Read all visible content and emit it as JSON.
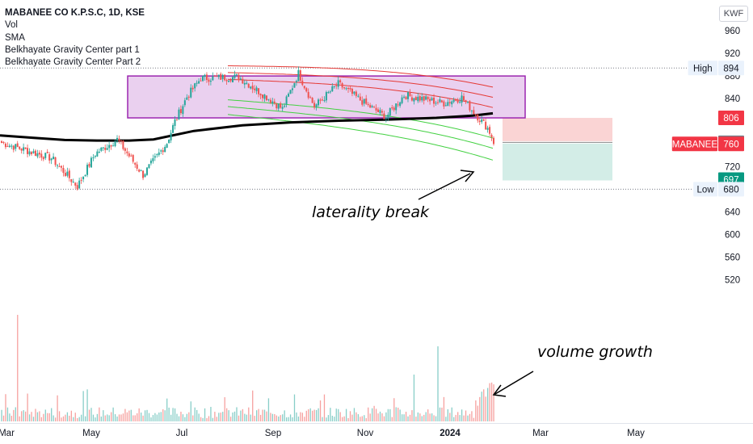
{
  "legend": {
    "title": "MABANEE CO K.P.S.C, 1D, KSE",
    "indicators": [
      "Vol",
      "SMA",
      "Belkhayate Gravity Center part 1",
      "Belkhayate Gravity Center Part 2"
    ]
  },
  "currency": "KWF",
  "annotations": {
    "laterality": "laterality break",
    "volume": "volume growth"
  },
  "colors": {
    "up": "#26a69a",
    "down": "#ef5350",
    "box_fill": "#e6c8ec",
    "box_stroke": "#9c27b0",
    "sma": "#000000",
    "upper_band": "#e53935",
    "lower_band": "#43d142",
    "stop_zone": "#fad4d4",
    "target_zone": "#d3ede7"
  },
  "chart_data": {
    "type": "candlestick",
    "symbol": "MABANEE",
    "y_axis": {
      "ticks": [
        960,
        920,
        880,
        840,
        800,
        760,
        720,
        680,
        640,
        600,
        560,
        520
      ],
      "range": [
        518,
        974
      ]
    },
    "x_axis": {
      "labels": [
        "Mar",
        "May",
        "Jul",
        "Sep",
        "Nov",
        "2024",
        "Mar",
        "May"
      ],
      "label_x": [
        8,
        113,
        225,
        338,
        452,
        557,
        669,
        787
      ]
    },
    "price_levels": {
      "high": {
        "label": "High",
        "value": 894
      },
      "low": {
        "label": "Low",
        "value": 680
      },
      "current": {
        "label": "MABANEE",
        "value": 760
      },
      "stop": {
        "value": 806
      },
      "entry": {
        "value": 762
      },
      "target": {
        "value": 697
      }
    },
    "consolidation_box": {
      "price_top": 880,
      "price_bottom": 806
    },
    "candles_approx": {
      "segments": [
        {
          "n": 25,
          "from": 762,
          "to": 735
        },
        {
          "n": 13,
          "from": 735,
          "to": 685
        },
        {
          "n": 9,
          "from": 685,
          "to": 743
        },
        {
          "n": 11,
          "from": 743,
          "to": 768
        },
        {
          "n": 13,
          "from": 768,
          "to": 705
        },
        {
          "n": 12,
          "from": 705,
          "to": 762
        },
        {
          "n": 4,
          "from": 762,
          "to": 800
        },
        {
          "n": 6,
          "from": 800,
          "to": 843
        },
        {
          "n": 7,
          "from": 843,
          "to": 876
        },
        {
          "n": 19,
          "from": 876,
          "to": 878
        },
        {
          "n": 16,
          "from": 878,
          "to": 838
        },
        {
          "n": 6,
          "from": 838,
          "to": 822
        },
        {
          "n": 8,
          "from": 822,
          "to": 885
        },
        {
          "n": 8,
          "from": 885,
          "to": 826
        },
        {
          "n": 12,
          "from": 826,
          "to": 866
        },
        {
          "n": 14,
          "from": 866,
          "to": 830
        },
        {
          "n": 10,
          "from": 830,
          "to": 808
        },
        {
          "n": 9,
          "from": 808,
          "to": 846
        },
        {
          "n": 20,
          "from": 846,
          "to": 832
        },
        {
          "n": 9,
          "from": 832,
          "to": 842
        },
        {
          "n": 7,
          "from": 842,
          "to": 812
        },
        {
          "n": 6,
          "from": 812,
          "to": 788
        },
        {
          "n": 4,
          "from": 788,
          "to": 760
        }
      ]
    }
  }
}
